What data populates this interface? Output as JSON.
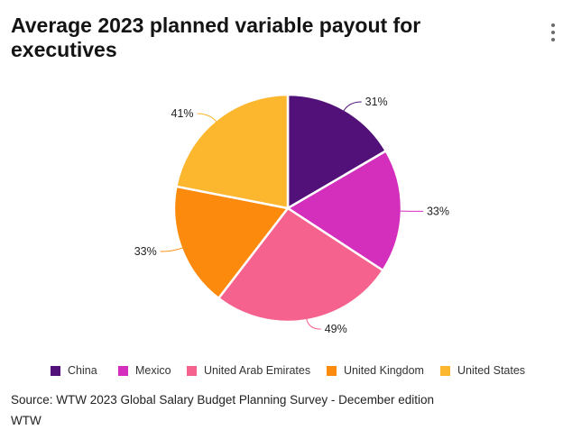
{
  "title": "Average 2023 planned variable payout for executives",
  "menu_icon": "kebab-menu-icon",
  "chart_data": {
    "type": "pie",
    "title": "Average 2023 planned variable payout for executives",
    "categories": [
      "China",
      "Mexico",
      "United Arab Emirates",
      "United Kingdom",
      "United States"
    ],
    "values": [
      31,
      33,
      49,
      33,
      41
    ],
    "value_labels": [
      "31%",
      "33%",
      "49%",
      "33%",
      "41%"
    ],
    "unit": "%",
    "start_angle_deg": 0,
    "direction": "clockwise",
    "colors": [
      "#521179",
      "#d42ebc",
      "#f6628e",
      "#fb8a0d",
      "#fdb72e"
    ],
    "legend_position": "bottom",
    "legend": [
      "China",
      "Mexico",
      "United Arab Emirates",
      "United Kingdom",
      "United States"
    ]
  },
  "source": "Source: WTW 2023 Global Salary Budget Planning Survey - December edition",
  "credit": "WTW"
}
